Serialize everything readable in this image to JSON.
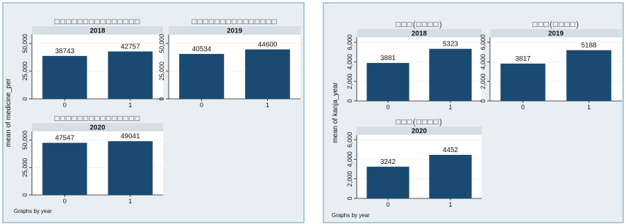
{
  "chart_data": [
    {
      "type": "bar",
      "ylabel": "mean of medicine_per",
      "note": "Graphs by year",
      "yticks": [
        0,
        25000,
        50000
      ],
      "ytick_labels": [
        "0",
        "25,000",
        "50,000"
      ],
      "ylim": [
        0,
        58000
      ],
      "categories": [
        "0",
        "1"
      ],
      "panels": [
        {
          "title": "□□□□□□□□□□□□□□□",
          "strip": "2018",
          "values": [
            38743,
            42757
          ],
          "value_labels": [
            "38743",
            "42757"
          ]
        },
        {
          "title": "□□□□□□□□□□□□□□□",
          "strip": "2019",
          "values": [
            40534,
            44600
          ],
          "value_labels": [
            "40534",
            "44600"
          ]
        },
        {
          "title": "□□□□□□□□□□□□□□□",
          "strip": "2020",
          "values": [
            47547,
            49041
          ],
          "value_labels": [
            "47547",
            "49041"
          ]
        }
      ],
      "bar_color": "#1a4a72"
    },
    {
      "type": "bar",
      "ylabel": "mean of kanja_year",
      "note": "Graphs by year",
      "yticks": [
        0,
        2000,
        4000,
        6000
      ],
      "ytick_labels": [
        "0",
        "2,000",
        "4,000",
        "6,000"
      ],
      "ylim": [
        0,
        6500
      ],
      "categories": [
        "0",
        "1"
      ],
      "panels": [
        {
          "title": "□□□(□□□□)",
          "strip": "2018",
          "values": [
            3881,
            5323
          ],
          "value_labels": [
            "3881",
            "5323"
          ]
        },
        {
          "title": "□□□(□□□□)",
          "strip": "2019",
          "values": [
            3817,
            5188
          ],
          "value_labels": [
            "3817",
            "5188"
          ]
        },
        {
          "title": "□□□(□□□□)",
          "strip": "2020",
          "values": [
            3242,
            4452
          ],
          "value_labels": [
            "3242",
            "4452"
          ]
        }
      ],
      "bar_color": "#1a4a72"
    }
  ]
}
